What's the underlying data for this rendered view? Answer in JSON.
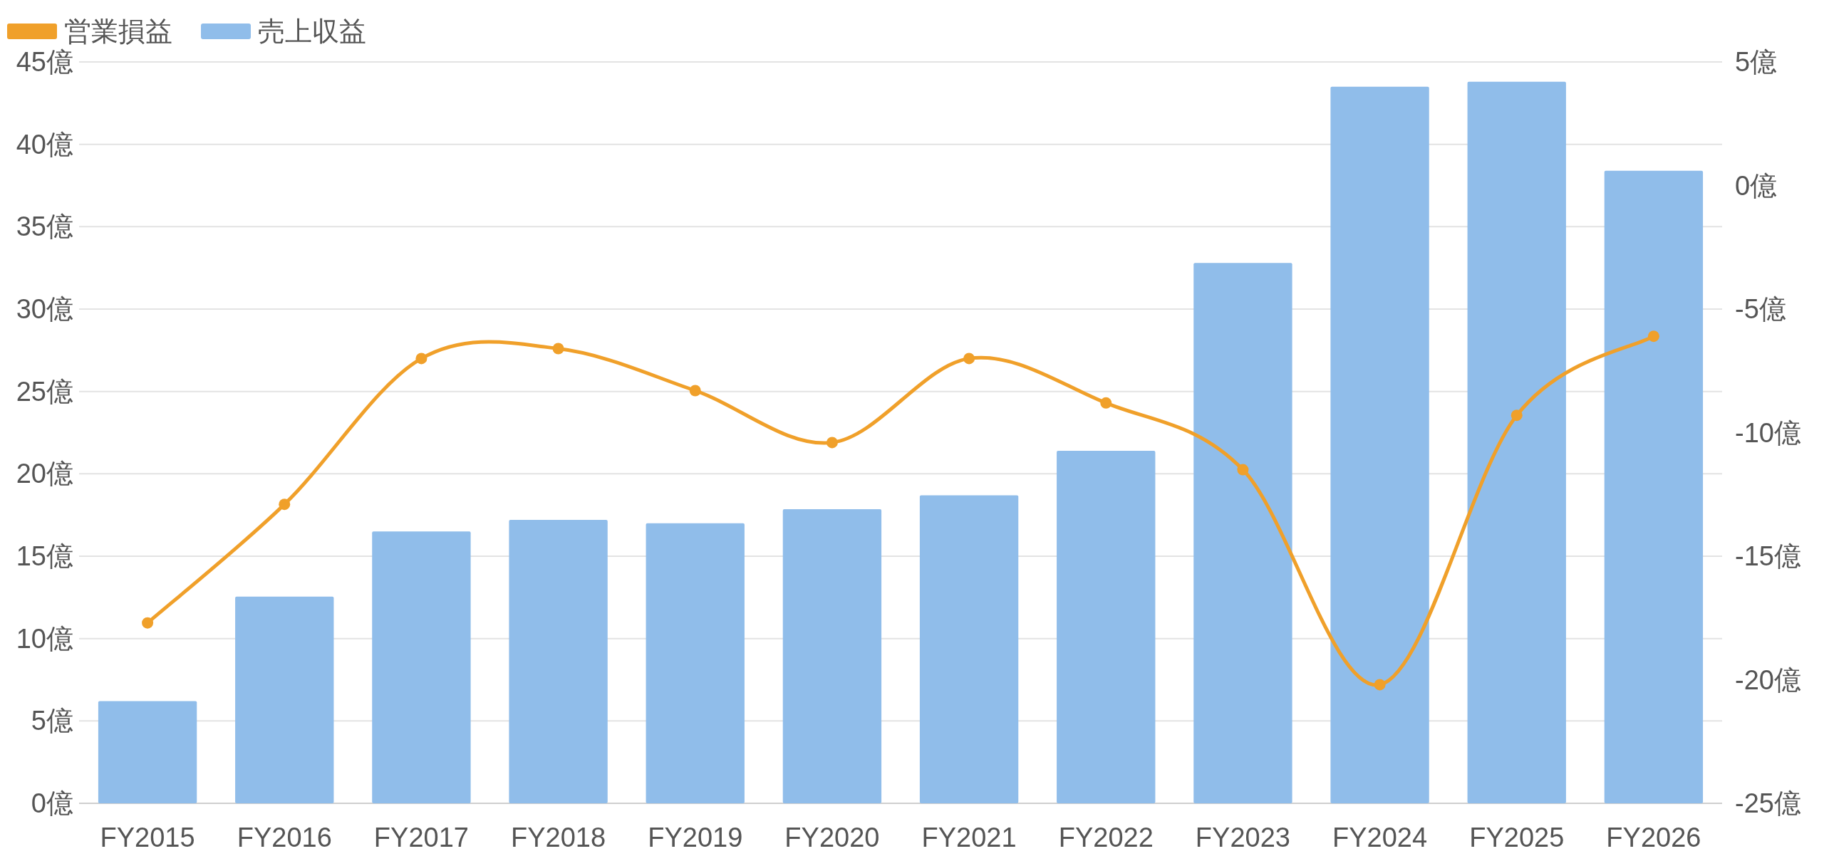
{
  "chart_data": {
    "type": "bar",
    "categories": [
      "FY2015",
      "FY2016",
      "FY2017",
      "FY2018",
      "FY2019",
      "FY2020",
      "FY2021",
      "FY2022",
      "FY2023",
      "FY2024",
      "FY2025",
      "FY2026"
    ],
    "series": [
      {
        "name": "営業損益",
        "type": "line",
        "axis": "y2",
        "color": "#f0a02a",
        "marker": "circle",
        "values": [
          -17.7,
          -12.9,
          -7.0,
          -6.6,
          -8.3,
          -10.4,
          -7.0,
          -8.8,
          -11.5,
          -20.2,
          -9.3,
          -6.1
        ]
      },
      {
        "name": "売上収益",
        "color": "#90bdea",
        "values": [
          6.2,
          12.55,
          16.5,
          17.2,
          17.0,
          17.85,
          18.7,
          21.4,
          32.8,
          43.5,
          43.8,
          38.4
        ]
      }
    ],
    "ylim": [
      0,
      45
    ],
    "yticks": [
      {
        "value": 0,
        "label": "0億"
      },
      {
        "value": 5,
        "label": "5億"
      },
      {
        "value": 10,
        "label": "10億"
      },
      {
        "value": 15,
        "label": "15億"
      },
      {
        "value": 20,
        "label": "20億"
      },
      {
        "value": 25,
        "label": "25億"
      },
      {
        "value": 30,
        "label": "30億"
      },
      {
        "value": 35,
        "label": "35億"
      },
      {
        "value": 40,
        "label": "40億"
      },
      {
        "value": 45,
        "label": "45億"
      }
    ],
    "y2lim": [
      -25,
      5
    ],
    "y2ticks": [
      {
        "value": -25,
        "label": "-25億"
      },
      {
        "value": -20,
        "label": "-20億"
      },
      {
        "value": -15,
        "label": "-15億"
      },
      {
        "value": -10,
        "label": "-10億"
      },
      {
        "value": -5,
        "label": "-5億"
      },
      {
        "value": 0,
        "label": "0億"
      },
      {
        "value": 5,
        "label": "5億"
      }
    ],
    "grid": "y",
    "legend": "top left"
  }
}
